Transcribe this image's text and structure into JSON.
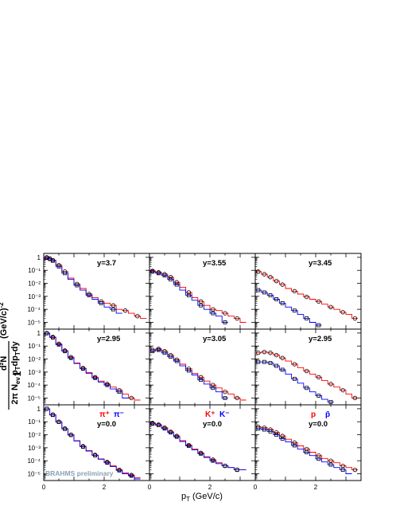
{
  "figure": {
    "xlabel": "p",
    "xlabel_sub": "T",
    "xlabel_unit": "(GeV/c)",
    "ylabel": {
      "numerator": "d²N",
      "fraction_numerator": "1",
      "fraction_denominator": "2π N",
      "denominator_sub": "ev",
      "denominator_rest": "p",
      "denominator_rest_sub": "T",
      "denominator_tail": "dp",
      "denominator_tail_sub": "T",
      "denominator_end": "dy",
      "unit": "(GeV/c)",
      "unit_exp": "-2"
    },
    "watermark": "BRAHMS preliminary",
    "x_ticks": [
      "0",
      "2"
    ],
    "y_ticks": [
      "1",
      "10⁻¹",
      "10⁻²",
      "10⁻³",
      "10⁻⁴",
      "10⁻⁵"
    ],
    "colors": {
      "positive": "#ff0000",
      "negative": "#0000ff",
      "data": "#000000"
    }
  },
  "chart_data": [
    {
      "type": "scatter",
      "row": 0,
      "col": 0,
      "label": "y=3.7",
      "particle": "pion",
      "xlim": [
        0,
        3.5
      ],
      "ylim": [
        3e-06,
        2
      ],
      "yscale": "log",
      "series": [
        {
          "kind": "red",
          "x": [
            0.1,
            0.2,
            0.3,
            0.5,
            0.7,
            0.9,
            1.1,
            1.3,
            1.5,
            1.7,
            1.9,
            2.1,
            2.3,
            2.5,
            2.7,
            2.9,
            3.1,
            3.3
          ],
          "values": [
            1.0,
            0.8,
            0.6,
            0.25,
            0.08,
            0.025,
            0.009,
            0.004,
            0.0015,
            0.0008,
            0.0004,
            0.0003,
            0.0002,
            0.0001,
            8e-05,
            5e-05,
            3e-05,
            2e-05
          ]
        },
        {
          "kind": "blue",
          "x": [
            0.1,
            0.2,
            0.3,
            0.5,
            0.7,
            0.9,
            1.1,
            1.3,
            1.5,
            1.7,
            1.9,
            2.1,
            2.3,
            2.5
          ],
          "values": [
            0.9,
            0.75,
            0.55,
            0.2,
            0.06,
            0.02,
            0.007,
            0.003,
            0.0012,
            0.0006,
            0.0003,
            0.00015,
            0.0001,
            5e-05
          ]
        }
      ]
    },
    {
      "type": "scatter",
      "row": 0,
      "col": 1,
      "label": "y=3.55",
      "particle": "kaon",
      "xlim": [
        0,
        3.5
      ],
      "ylim": [
        3e-06,
        2
      ],
      "yscale": "log",
      "series": [
        {
          "kind": "red",
          "x": [
            0.1,
            0.3,
            0.5,
            0.7,
            0.9,
            1.1,
            1.3,
            1.5,
            1.7,
            1.9,
            2.1,
            2.3,
            2.5,
            2.7,
            2.9,
            3.1
          ],
          "values": [
            0.09,
            0.07,
            0.05,
            0.03,
            0.012,
            0.005,
            0.002,
            0.0008,
            0.0004,
            0.0002,
            0.0001,
            8e-05,
            5e-05,
            3e-05,
            2e-05,
            1e-05
          ]
        },
        {
          "kind": "blue",
          "x": [
            0.1,
            0.3,
            0.5,
            0.7,
            0.9,
            1.1,
            1.3,
            1.5,
            1.7,
            1.9,
            2.1,
            2.3,
            2.5
          ],
          "values": [
            0.08,
            0.06,
            0.04,
            0.02,
            0.008,
            0.003,
            0.0012,
            0.0005,
            0.0002,
            0.0001,
            5e-05,
            3e-05,
            1e-05
          ]
        }
      ]
    },
    {
      "type": "scatter",
      "row": 0,
      "col": 2,
      "label": "y=3.45",
      "particle": "proton",
      "xlim": [
        0,
        3.5
      ],
      "ylim": [
        3e-06,
        2
      ],
      "yscale": "log",
      "series": [
        {
          "kind": "red",
          "x": [
            0.1,
            0.3,
            0.5,
            0.7,
            0.9,
            1.1,
            1.3,
            1.5,
            1.7,
            1.9,
            2.1,
            2.3,
            2.5,
            2.7,
            2.9,
            3.1,
            3.3
          ],
          "values": [
            0.08,
            0.05,
            0.03,
            0.015,
            0.008,
            0.004,
            0.0025,
            0.0015,
            0.0009,
            0.0006,
            0.0004,
            0.00025,
            0.00015,
            0.0001,
            6e-05,
            4e-05,
            2e-05
          ]
        },
        {
          "kind": "blue",
          "x": [
            0.1,
            0.3,
            0.5,
            0.7,
            0.9,
            1.1,
            1.3,
            1.5,
            1.7,
            1.9,
            2.1
          ],
          "values": [
            0.003,
            0.002,
            0.0012,
            0.0006,
            0.0003,
            0.00015,
            8e-05,
            4e-05,
            2e-05,
            1e-05,
            6e-06
          ]
        }
      ]
    },
    {
      "type": "scatter",
      "row": 1,
      "col": 0,
      "label": "y=2.95",
      "particle": "pion",
      "xlim": [
        0,
        3.5
      ],
      "ylim": [
        3e-06,
        2
      ],
      "yscale": "log",
      "series": [
        {
          "kind": "red",
          "x": [
            0.1,
            0.3,
            0.5,
            0.7,
            0.9,
            1.1,
            1.3,
            1.5,
            1.7,
            1.9,
            2.1,
            2.3,
            2.5,
            2.7,
            2.9,
            3.1
          ],
          "values": [
            1.0,
            0.5,
            0.15,
            0.045,
            0.014,
            0.005,
            0.002,
            0.0009,
            0.0004,
            0.0002,
            0.00012,
            7e-05,
            4e-05,
            2e-05,
            1e-05,
            7e-06
          ]
        },
        {
          "kind": "blue",
          "x": [
            0.1,
            0.3,
            0.5,
            0.7,
            0.9,
            1.1,
            1.3,
            1.5,
            1.7,
            1.9,
            2.1,
            2.3,
            2.5,
            2.7
          ],
          "values": [
            0.95,
            0.45,
            0.13,
            0.04,
            0.012,
            0.0045,
            0.0018,
            0.0008,
            0.00035,
            0.00017,
            0.0001,
            5e-05,
            3e-05,
            1e-05
          ]
        }
      ]
    },
    {
      "type": "scatter",
      "row": 1,
      "col": 1,
      "label": "y=3.05",
      "particle": "kaon",
      "xlim": [
        0,
        3.5
      ],
      "ylim": [
        3e-06,
        2
      ],
      "yscale": "log",
      "series": [
        {
          "kind": "red",
          "x": [
            0.1,
            0.3,
            0.5,
            0.7,
            0.9,
            1.1,
            1.3,
            1.5,
            1.7,
            1.9,
            2.1,
            2.3,
            2.5,
            2.7,
            2.9,
            3.1
          ],
          "values": [
            0.05,
            0.06,
            0.04,
            0.02,
            0.009,
            0.004,
            0.0018,
            0.0008,
            0.0004,
            0.0002,
            0.0001,
            6e-05,
            3e-05,
            2e-05,
            1e-05,
            7e-06
          ]
        },
        {
          "kind": "blue",
          "x": [
            0.1,
            0.3,
            0.5,
            0.7,
            0.9,
            1.1,
            1.3,
            1.5,
            1.7,
            1.9,
            2.1,
            2.3,
            2.5
          ],
          "values": [
            0.04,
            0.05,
            0.03,
            0.015,
            0.007,
            0.003,
            0.0013,
            0.0006,
            0.00025,
            0.00012,
            6e-05,
            3e-05,
            1e-05
          ]
        }
      ]
    },
    {
      "type": "scatter",
      "row": 1,
      "col": 2,
      "label": "y=2.95",
      "particle": "proton",
      "xlim": [
        0,
        3.5
      ],
      "ylim": [
        3e-06,
        2
      ],
      "yscale": "log",
      "series": [
        {
          "kind": "red",
          "x": [
            0.1,
            0.3,
            0.5,
            0.7,
            0.9,
            1.1,
            1.3,
            1.5,
            1.7,
            1.9,
            2.1,
            2.3,
            2.5,
            2.7,
            2.9,
            3.1,
            3.3
          ],
          "values": [
            0.03,
            0.035,
            0.03,
            0.02,
            0.012,
            0.007,
            0.004,
            0.0022,
            0.0012,
            0.0007,
            0.0004,
            0.00022,
            0.00012,
            7e-05,
            4e-05,
            2e-05,
            1e-05
          ]
        },
        {
          "kind": "blue",
          "x": [
            0.1,
            0.3,
            0.5,
            0.7,
            0.9,
            1.1,
            1.3,
            1.5,
            1.7,
            1.9,
            2.1,
            2.3,
            2.5
          ],
          "values": [
            0.006,
            0.006,
            0.005,
            0.003,
            0.0015,
            0.0007,
            0.0003,
            0.00014,
            6e-05,
            3e-05,
            1.5e-05,
            8e-06,
            5e-06
          ]
        }
      ]
    },
    {
      "type": "scatter",
      "row": 2,
      "col": 0,
      "label": "y=0.0",
      "particle": "pion",
      "xlim": [
        0,
        3.5
      ],
      "ylim": [
        3e-06,
        2
      ],
      "yscale": "log",
      "legend": [
        {
          "text": "π⁺",
          "color": "#ff0000"
        },
        {
          "text": "π⁻",
          "color": "#0000ff"
        }
      ],
      "series": [
        {
          "kind": "red",
          "x": [
            0.1,
            0.3,
            0.5,
            0.7,
            0.9,
            1.1,
            1.3,
            1.5,
            1.7,
            1.9,
            2.1,
            2.3,
            2.5,
            2.7,
            2.9,
            3.1
          ],
          "values": [
            1.0,
            0.35,
            0.1,
            0.03,
            0.01,
            0.0035,
            0.0013,
            0.0006,
            0.00028,
            0.00014,
            8e-05,
            4e-05,
            2e-05,
            1.2e-05,
            8e-06,
            5e-06
          ]
        },
        {
          "kind": "blue",
          "x": [
            0.1,
            0.3,
            0.5,
            0.7,
            0.9,
            1.1,
            1.3,
            1.5,
            1.7,
            1.9,
            2.1,
            2.3,
            2.5,
            2.7,
            2.9,
            3.1
          ],
          "values": [
            1.0,
            0.33,
            0.095,
            0.028,
            0.0095,
            0.0033,
            0.0012,
            0.00055,
            0.00026,
            0.00013,
            7e-05,
            3.5e-05,
            1.8e-05,
            1e-05,
            7e-06,
            4e-06
          ]
        }
      ]
    },
    {
      "type": "scatter",
      "row": 2,
      "col": 1,
      "label": "y=0.0",
      "particle": "kaon",
      "xlim": [
        0,
        3.5
      ],
      "ylim": [
        3e-06,
        2
      ],
      "yscale": "log",
      "legend": [
        {
          "text": "K⁺",
          "color": "#ff0000"
        },
        {
          "text": "K⁻",
          "color": "#0000ff"
        }
      ],
      "series": [
        {
          "kind": "red",
          "x": [
            0.1,
            0.3,
            0.5,
            0.7,
            0.9,
            1.1,
            1.3,
            1.5,
            1.7,
            1.9,
            2.1,
            2.3,
            2.5,
            2.7,
            2.9,
            3.1
          ],
          "values": [
            0.08,
            0.06,
            0.035,
            0.017,
            0.008,
            0.0035,
            0.0016,
            0.0008,
            0.0004,
            0.0002,
            0.00012,
            7e-05,
            4e-05,
            3e-05,
            2e-05,
            2e-05
          ]
        },
        {
          "kind": "blue",
          "x": [
            0.1,
            0.3,
            0.5,
            0.7,
            0.9,
            1.1,
            1.3,
            1.5,
            1.7,
            1.9,
            2.1,
            2.3,
            2.5,
            2.7,
            2.9,
            3.1
          ],
          "values": [
            0.07,
            0.055,
            0.03,
            0.015,
            0.007,
            0.003,
            0.0014,
            0.0007,
            0.00035,
            0.00018,
            0.0001,
            6e-05,
            4e-05,
            3e-05,
            2e-05,
            2e-05
          ]
        }
      ]
    },
    {
      "type": "scatter",
      "row": 2,
      "col": 2,
      "label": "y=0.0",
      "particle": "proton",
      "xlim": [
        0,
        3.5
      ],
      "ylim": [
        3e-06,
        2
      ],
      "yscale": "log",
      "legend": [
        {
          "text": "p",
          "color": "#ff0000"
        },
        {
          "text": "p̄",
          "color": "#0000ff"
        }
      ],
      "series": [
        {
          "kind": "red",
          "x": [
            0.1,
            0.3,
            0.5,
            0.7,
            0.9,
            1.1,
            1.3,
            1.5,
            1.7,
            1.9,
            2.1,
            2.3,
            2.5,
            2.7,
            2.9,
            3.1,
            3.3
          ],
          "values": [
            0.04,
            0.035,
            0.025,
            0.015,
            0.008,
            0.0045,
            0.0025,
            0.0014,
            0.0008,
            0.00045,
            0.00025,
            0.00015,
            0.0001,
            7e-05,
            4e-05,
            3e-05,
            2e-05
          ]
        },
        {
          "kind": "blue",
          "x": [
            0.1,
            0.3,
            0.5,
            0.7,
            0.9,
            1.1,
            1.3,
            1.5,
            1.7,
            1.9,
            2.1,
            2.3,
            2.5,
            2.7,
            2.9,
            3.1
          ],
          "values": [
            0.03,
            0.025,
            0.018,
            0.01,
            0.005,
            0.0028,
            0.0015,
            0.0008,
            0.00045,
            0.00025,
            0.00014,
            8e-05,
            5e-05,
            3e-05,
            2e-05,
            1e-05
          ]
        }
      ]
    }
  ]
}
